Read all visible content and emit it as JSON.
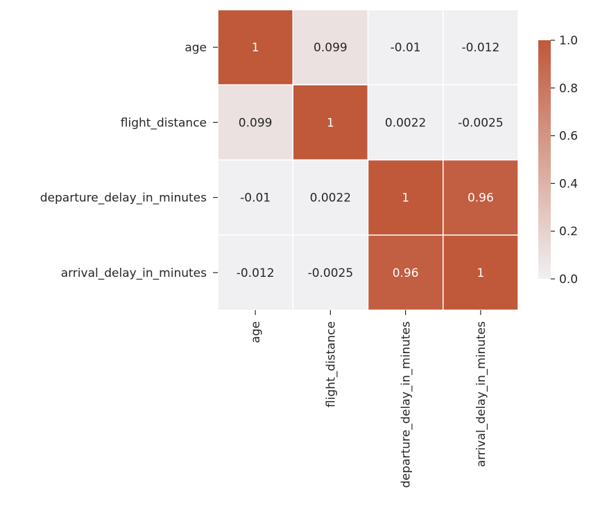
{
  "chart_data": {
    "type": "heatmap",
    "title": "",
    "xlabel": "",
    "ylabel": "",
    "rows": [
      "age",
      "flight_distance",
      "departure_delay_in_minutes",
      "arrival_delay_in_minutes"
    ],
    "cols": [
      "age",
      "flight_distance",
      "departure_delay_in_minutes",
      "arrival_delay_in_minutes"
    ],
    "values": [
      [
        1,
        0.099,
        -0.01,
        -0.012
      ],
      [
        0.099,
        1,
        0.0022,
        -0.0025
      ],
      [
        -0.01,
        0.0022,
        1,
        0.96
      ],
      [
        -0.012,
        -0.0025,
        0.96,
        1
      ]
    ],
    "cell_labels": [
      [
        "1",
        "0.099",
        "-0.01",
        "-0.012"
      ],
      [
        "0.099",
        "1",
        "0.0022",
        "-0.0025"
      ],
      [
        "-0.01",
        "0.0022",
        "1",
        "0.96"
      ],
      [
        "-0.012",
        "-0.0025",
        "0.96",
        "1"
      ]
    ],
    "colorbar": {
      "range": [
        0.0,
        1.0
      ],
      "ticks": [
        0.0,
        0.2,
        0.4,
        0.6,
        0.8,
        1.0
      ],
      "tick_labels": [
        "0.0",
        "0.2",
        "0.4",
        "0.6",
        "0.8",
        "1.0"
      ],
      "low_color": "#f0f0f2",
      "high_color": "#c0583a"
    },
    "grid": false,
    "cell_border_color": "#ffffff"
  }
}
